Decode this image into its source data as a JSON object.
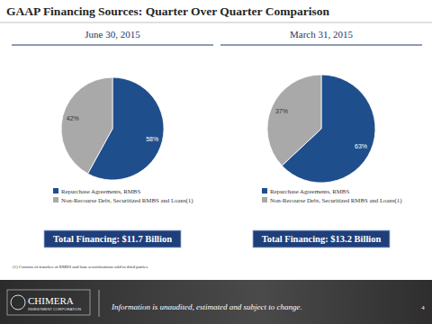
{
  "title": "GAAP Financing Sources: Quarter Over Quarter Comparison",
  "chart_data": [
    {
      "type": "pie",
      "title": "June 30, 2015",
      "categories": [
        "Repurchase Agreements, RMBS",
        "Non-Recourse Debt, Securitized RMBS and Loans(1)"
      ],
      "values": [
        58,
        42
      ],
      "value_labels": [
        "58%",
        "42%"
      ],
      "colors": [
        "#1f4e8c",
        "#a9a9a9"
      ],
      "data_labels": true,
      "legend": "bottom",
      "annotation": "Total Financing: $11.7 Billion"
    },
    {
      "type": "pie",
      "title": "March 31, 2015",
      "categories": [
        "Repurchase Agreements, RMBS",
        "Non-Recourse Debt, Securitized RMBS and Loans(1)"
      ],
      "values": [
        63,
        37
      ],
      "value_labels": [
        "63%",
        "37%"
      ],
      "colors": [
        "#1f4e8c",
        "#a9a9a9"
      ],
      "data_labels": true,
      "legend": "bottom",
      "annotation": "Total Financing: $13.2 Billion"
    }
  ],
  "footnote": "(1) Consists of tranches of RMBS and loan securitizations sold to third parties",
  "footer": {
    "logo": [
      "CHIMERA",
      "INVESTMENT CORPORATION"
    ],
    "note": "Information is unaudited, estimated and subject to change.",
    "page": "4"
  }
}
